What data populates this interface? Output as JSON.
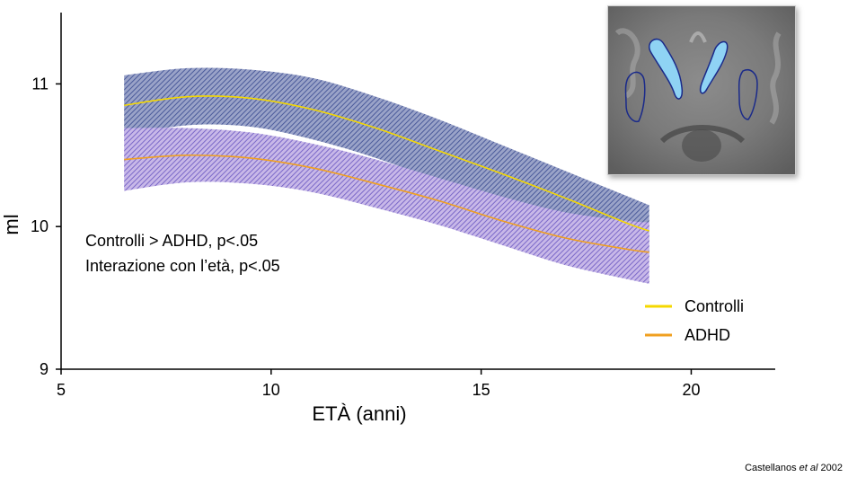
{
  "chart_data": {
    "type": "area",
    "xlabel": "ETÀ (anni)",
    "ylabel": "ml",
    "xlim": [
      5,
      22
    ],
    "ylim": [
      9,
      11.5
    ],
    "xticks": [
      5,
      10,
      15,
      20
    ],
    "yticks": [
      9,
      10,
      11
    ],
    "grid": false,
    "legend_position": "bottom-right",
    "series": [
      {
        "name": "Controlli",
        "color": "#f5d800",
        "band_color": "#5a6aa8",
        "x": [
          6.5,
          8,
          9.5,
          11,
          12.5,
          14,
          15.5,
          17,
          18.5,
          19
        ],
        "mean": [
          10.85,
          10.91,
          10.9,
          10.82,
          10.69,
          10.53,
          10.37,
          10.2,
          10.02,
          9.97
        ],
        "upper": [
          11.06,
          11.11,
          11.1,
          11.04,
          10.91,
          10.75,
          10.57,
          10.39,
          10.21,
          10.15
        ],
        "lower": [
          10.64,
          10.71,
          10.7,
          10.61,
          10.48,
          10.32,
          10.17,
          10.01,
          9.84,
          9.79
        ]
      },
      {
        "name": "ADHD",
        "color": "#f0a020",
        "band_color": "#8878cc",
        "x": [
          6.5,
          8,
          9.5,
          11,
          12.5,
          14,
          15.5,
          17,
          18.5,
          19
        ],
        "mean": [
          10.47,
          10.5,
          10.48,
          10.41,
          10.3,
          10.18,
          10.04,
          9.92,
          9.84,
          9.82
        ],
        "upper": [
          10.69,
          10.69,
          10.66,
          10.58,
          10.47,
          10.34,
          10.21,
          10.1,
          10.04,
          10.03
        ],
        "lower": [
          10.25,
          10.31,
          10.3,
          10.24,
          10.13,
          10.01,
          9.87,
          9.73,
          9.63,
          9.6
        ]
      }
    ],
    "annotations": [
      "Controlli > ADHD, p<.05",
      "Interazione con l’età, p<.05"
    ]
  },
  "citation": {
    "author": "Castellanos",
    "etal": "et al",
    "year": "2002"
  }
}
